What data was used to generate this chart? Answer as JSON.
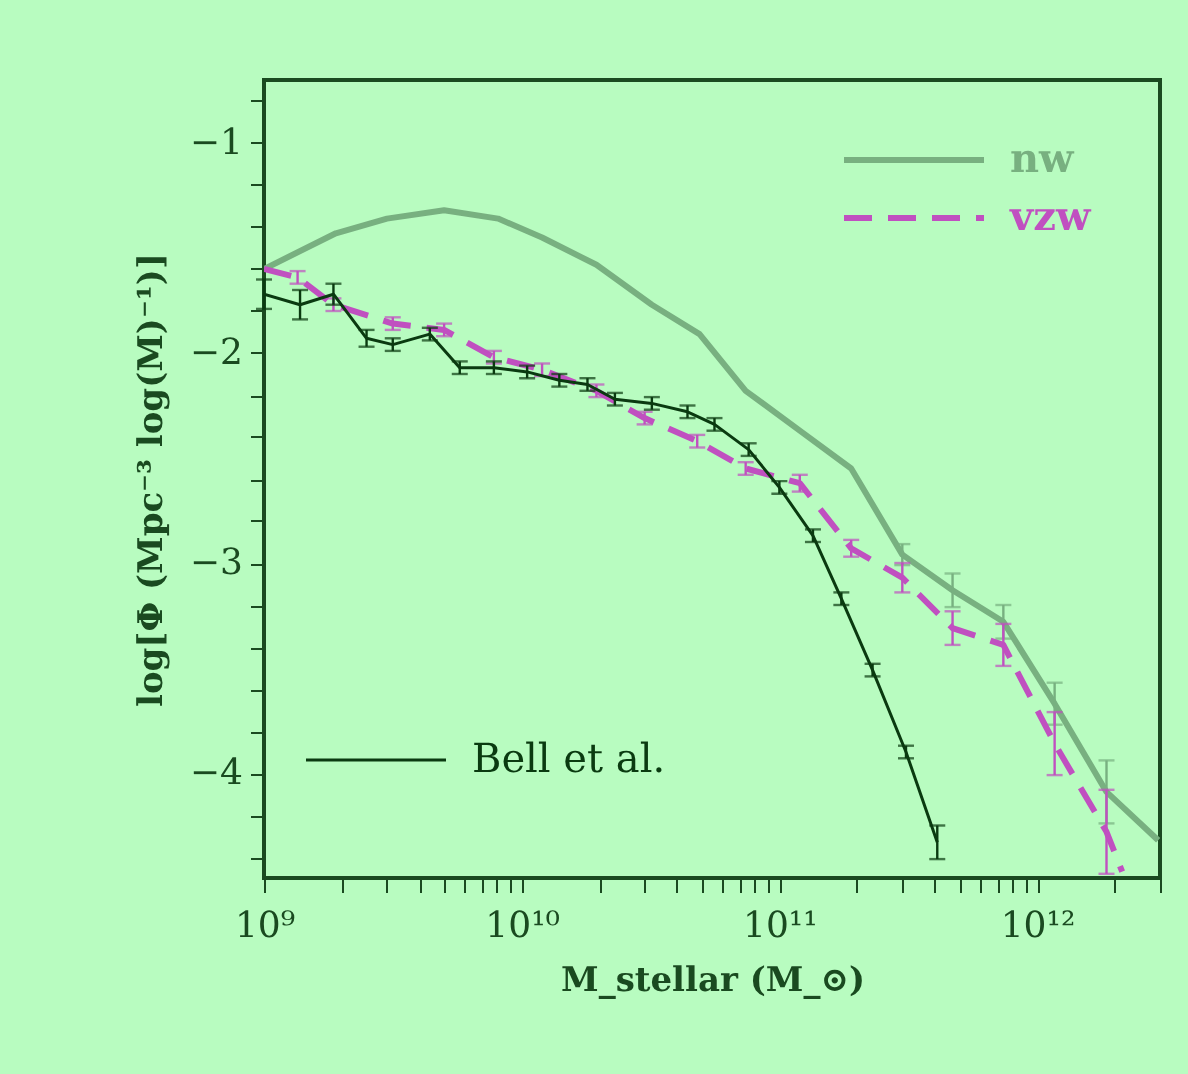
{
  "chart_data": {
    "type": "line",
    "xlabel": "M_stellar (M_⊙)",
    "ylabel": "log[Φ (Mpc⁻³ log(M)⁻¹)]",
    "log": "x",
    "xlim": [
      1000000000.0,
      3000000000000.0
    ],
    "xticks": [
      {
        "value": 1000000000.0,
        "label": "10⁹"
      },
      {
        "value": 2000000000.0,
        "label": null
      },
      {
        "value": 3000000000.0,
        "label": null
      },
      {
        "value": 4000000000.0,
        "label": null
      },
      {
        "value": 5000000000.0,
        "label": null
      },
      {
        "value": 6000000000.0,
        "label": null
      },
      {
        "value": 7000000000.0,
        "label": null
      },
      {
        "value": 8000000000.0,
        "label": null
      },
      {
        "value": 9000000000.0,
        "label": null
      },
      {
        "value": 10000000000.0,
        "label": "10¹⁰"
      },
      {
        "value": 20000000000.0,
        "label": null
      },
      {
        "value": 30000000000.0,
        "label": null
      },
      {
        "value": 40000000000.0,
        "label": null
      },
      {
        "value": 50000000000.0,
        "label": null
      },
      {
        "value": 60000000000.0,
        "label": null
      },
      {
        "value": 70000000000.0,
        "label": null
      },
      {
        "value": 80000000000.0,
        "label": null
      },
      {
        "value": 90000000000.0,
        "label": null
      },
      {
        "value": 100000000000.0,
        "label": "10¹¹"
      },
      {
        "value": 200000000000.0,
        "label": null
      },
      {
        "value": 300000000000.0,
        "label": null
      },
      {
        "value": 400000000000.0,
        "label": null
      },
      {
        "value": 500000000000.0,
        "label": null
      },
      {
        "value": 600000000000.0,
        "label": null
      },
      {
        "value": 700000000000.0,
        "label": null
      },
      {
        "value": 800000000000.0,
        "label": null
      },
      {
        "value": 900000000000.0,
        "label": null
      },
      {
        "value": 1000000000000.0,
        "label": "10¹²"
      },
      {
        "value": 2000000000000.0,
        "label": null
      },
      {
        "value": 3000000000000.0,
        "label": null
      }
    ],
    "ylim": [
      -4.5,
      -0.7
    ],
    "yticks": [
      {
        "value": -4.4,
        "label": null
      },
      {
        "value": -4.2,
        "label": null
      },
      {
        "value": -4,
        "label": "−4"
      },
      {
        "value": -3.8,
        "label": null
      },
      {
        "value": -3.6,
        "label": null
      },
      {
        "value": -3.4,
        "label": null
      },
      {
        "value": -3.2,
        "label": null
      },
      {
        "value": -3,
        "label": "−3"
      },
      {
        "value": -2.8,
        "label": null
      },
      {
        "value": -2.6,
        "label": null
      },
      {
        "value": -2.4,
        "label": null
      },
      {
        "value": -2.2,
        "label": null
      },
      {
        "value": -2,
        "label": "−2"
      },
      {
        "value": -1.8,
        "label": null
      },
      {
        "value": -1.6,
        "label": null
      },
      {
        "value": -1.4,
        "label": null
      },
      {
        "value": -1.2,
        "label": null
      },
      {
        "value": -1,
        "label": "−1"
      },
      {
        "value": -0.8,
        "label": null
      }
    ],
    "grid": false,
    "legend": "top right",
    "series": [
      {
        "name": "nw",
        "color": "#78b080",
        "line_style": "solid",
        "x": [
          1000000000.0,
          1900000000.0,
          3000000000.0,
          5000000000.0,
          8100000000.0,
          12000000000.0,
          19500000000.0,
          32000000000.0,
          49000000000.0,
          74000000000.0,
          120000000000.0,
          190000000000.0,
          300000000000.0,
          470000000000.0,
          740000000000.0,
          1170000000000.0,
          1860000000000.0,
          2950000000000.0
        ],
        "values": [
          -1.6,
          -1.43,
          -1.36,
          -1.32,
          -1.36,
          -1.45,
          -1.58,
          -1.77,
          -1.91,
          -2.18,
          -2.37,
          -2.55,
          -2.96,
          -3.13,
          -3.28,
          -3.67,
          -4.09,
          -4.32
        ],
        "errors": [
          null,
          null,
          null,
          null,
          null,
          null,
          null,
          null,
          null,
          null,
          null,
          null,
          0.05,
          0.08,
          0.08,
          0.1,
          0.15,
          null
        ]
      },
      {
        "name": "vzw",
        "color": "#c050c0",
        "line_style": "dashed",
        "x": [
          1000000000.0,
          1350000000.0,
          1860000000.0,
          3160000000.0,
          5000000000.0,
          7800000000.0,
          12000000000.0,
          19500000000.0,
          30000000000.0,
          48000000000.0,
          74000000000.0,
          120000000000.0,
          190000000000.0,
          300000000000.0,
          470000000000.0,
          740000000000.0,
          1170000000000.0,
          1860000000000.0,
          2140000000000.0
        ],
        "values": [
          -1.6,
          -1.64,
          -1.77,
          -1.86,
          -1.89,
          -2.02,
          -2.08,
          -2.18,
          -2.31,
          -2.42,
          -2.55,
          -2.62,
          -2.93,
          -3.07,
          -3.31,
          -3.39,
          -3.86,
          -4.28,
          -4.47
        ],
        "errors": [
          null,
          0.03,
          0.03,
          0.03,
          0.03,
          0.03,
          0.03,
          0.03,
          0.03,
          0.03,
          0.03,
          0.04,
          0.04,
          0.07,
          0.08,
          0.1,
          0.15,
          0.2,
          null
        ]
      },
      {
        "name": "Bell et al.",
        "color": "#0a3a10",
        "line_style": "solid",
        "x": [
          1000000000.0,
          1380000000.0,
          1860000000.0,
          2500000000.0,
          3160000000.0,
          4400000000.0,
          5750000000.0,
          7800000000.0,
          10500000000.0,
          14000000000.0,
          18000000000.0,
          23000000000.0,
          32000000000.0,
          44000000000.0,
          56000000000.0,
          76000000000.0,
          100000000000.0,
          135000000000.0,
          174000000000.0,
          230000000000.0,
          310000000000.0,
          410000000000.0
        ],
        "values": [
          -1.72,
          -1.77,
          -1.72,
          -1.93,
          -1.96,
          -1.91,
          -2.07,
          -2.07,
          -2.09,
          -2.13,
          -2.15,
          -2.22,
          -2.24,
          -2.28,
          -2.34,
          -2.46,
          -2.64,
          -2.87,
          -3.17,
          -3.51,
          -3.9,
          -4.33
        ],
        "errors": [
          0.07,
          0.07,
          0.05,
          0.04,
          0.03,
          0.03,
          0.03,
          0.03,
          0.03,
          0.03,
          0.03,
          0.03,
          0.03,
          0.03,
          0.03,
          0.03,
          0.03,
          0.03,
          0.03,
          0.03,
          0.03,
          0.08
        ]
      }
    ]
  }
}
